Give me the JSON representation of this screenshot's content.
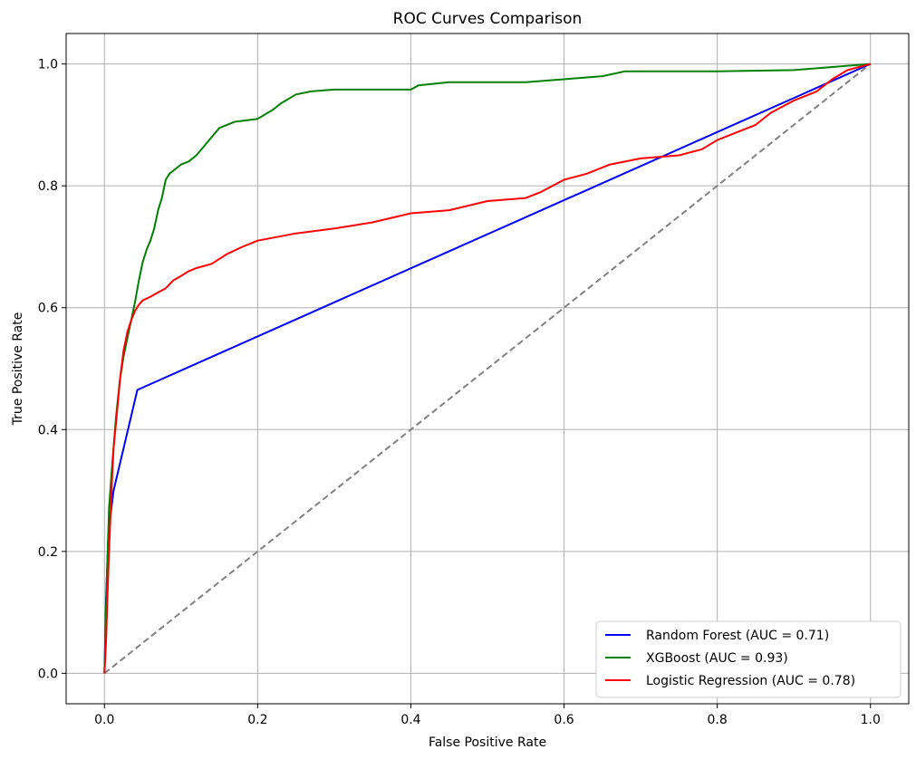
{
  "chart_data": {
    "type": "line",
    "title": "ROC Curves Comparison",
    "xlabel": "False Positive Rate",
    "ylabel": "True Positive Rate",
    "xlim": [
      -0.05,
      1.05
    ],
    "ylim": [
      -0.05,
      1.05
    ],
    "xticks": [
      0.0,
      0.2,
      0.4,
      0.6,
      0.8,
      1.0
    ],
    "yticks": [
      0.0,
      0.2,
      0.4,
      0.6,
      0.8,
      1.0
    ],
    "xtick_labels": [
      "0.0",
      "0.2",
      "0.4",
      "0.6",
      "0.8",
      "1.0"
    ],
    "ytick_labels": [
      "0.0",
      "0.2",
      "0.4",
      "0.6",
      "0.8",
      "1.0"
    ],
    "grid": true,
    "legend_position": "lower-right",
    "series": [
      {
        "name": "Random Forest (AUC = 0.71)",
        "color": "#0000ff",
        "dashed": false,
        "x": [
          0.0,
          0.002,
          0.005,
          0.008,
          0.012,
          0.043,
          1.0
        ],
        "y": [
          0.0,
          0.12,
          0.22,
          0.26,
          0.3,
          0.465,
          1.0
        ]
      },
      {
        "name": "XGBoost (AUC = 0.93)",
        "color": "#008000",
        "dashed": false,
        "x": [
          0.0,
          0.003,
          0.006,
          0.01,
          0.015,
          0.02,
          0.025,
          0.03,
          0.035,
          0.04,
          0.045,
          0.05,
          0.055,
          0.06,
          0.065,
          0.07,
          0.075,
          0.08,
          0.085,
          0.09,
          0.095,
          0.1,
          0.11,
          0.12,
          0.13,
          0.14,
          0.15,
          0.16,
          0.17,
          0.2,
          0.22,
          0.23,
          0.25,
          0.27,
          0.3,
          0.35,
          0.4,
          0.41,
          0.45,
          0.5,
          0.55,
          0.6,
          0.65,
          0.68,
          0.72,
          0.8,
          0.9,
          0.95,
          1.0
        ],
        "y": [
          0.0,
          0.15,
          0.27,
          0.34,
          0.42,
          0.48,
          0.52,
          0.55,
          0.58,
          0.61,
          0.645,
          0.675,
          0.695,
          0.71,
          0.73,
          0.76,
          0.78,
          0.81,
          0.82,
          0.825,
          0.83,
          0.835,
          0.84,
          0.85,
          0.865,
          0.88,
          0.895,
          0.9,
          0.905,
          0.91,
          0.925,
          0.935,
          0.95,
          0.955,
          0.958,
          0.958,
          0.958,
          0.965,
          0.97,
          0.97,
          0.97,
          0.975,
          0.98,
          0.988,
          0.988,
          0.988,
          0.99,
          0.995,
          1.0
        ]
      },
      {
        "name": "Logistic Regression (AUC = 0.78)",
        "color": "#ff0000",
        "dashed": false,
        "x": [
          0.0,
          0.002,
          0.004,
          0.006,
          0.008,
          0.01,
          0.012,
          0.015,
          0.018,
          0.021,
          0.025,
          0.03,
          0.035,
          0.04,
          0.045,
          0.05,
          0.06,
          0.07,
          0.08,
          0.09,
          0.1,
          0.11,
          0.12,
          0.14,
          0.16,
          0.18,
          0.2,
          0.25,
          0.3,
          0.35,
          0.4,
          0.45,
          0.5,
          0.55,
          0.57,
          0.6,
          0.63,
          0.66,
          0.7,
          0.75,
          0.78,
          0.8,
          0.83,
          0.85,
          0.87,
          0.9,
          0.93,
          0.95,
          0.97,
          1.0
        ],
        "y": [
          0.0,
          0.05,
          0.13,
          0.2,
          0.26,
          0.32,
          0.37,
          0.41,
          0.45,
          0.49,
          0.53,
          0.56,
          0.58,
          0.595,
          0.605,
          0.612,
          0.618,
          0.625,
          0.632,
          0.645,
          0.652,
          0.66,
          0.665,
          0.672,
          0.688,
          0.7,
          0.71,
          0.722,
          0.73,
          0.74,
          0.755,
          0.76,
          0.775,
          0.78,
          0.79,
          0.81,
          0.82,
          0.835,
          0.845,
          0.85,
          0.86,
          0.875,
          0.89,
          0.9,
          0.92,
          0.94,
          0.955,
          0.975,
          0.99,
          1.0
        ]
      },
      {
        "color": "#808080",
        "dashed": true,
        "x": [
          0.0,
          1.0
        ],
        "y": [
          0.0,
          1.0
        ]
      }
    ]
  }
}
